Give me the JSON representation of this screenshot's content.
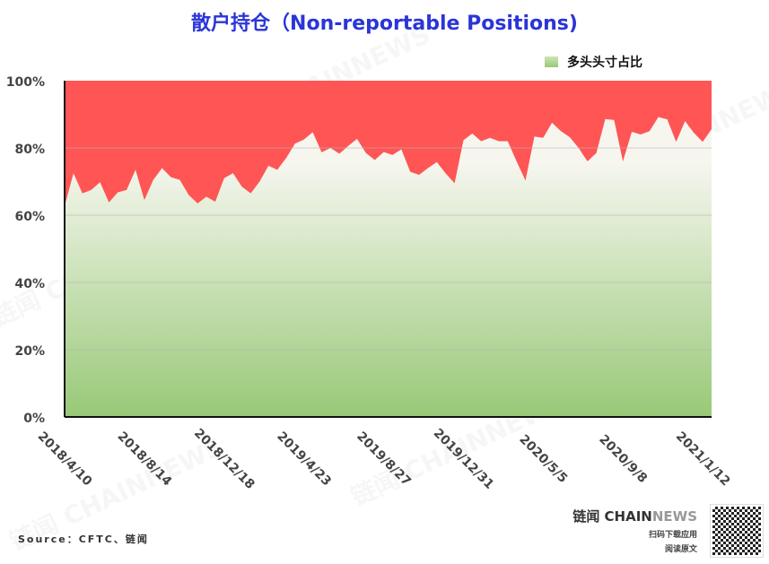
{
  "chart_data": {
    "type": "area",
    "title": "散户持仓（Non-reportable Positions)",
    "legend": {
      "label": "多头头寸占比",
      "placement": "top-right"
    },
    "colors": {
      "long_area_top": "#f6f6ef",
      "long_area_bottom": "#98c977",
      "remainder": "#ff5555",
      "title": "#2a35d8"
    },
    "ylim": [
      0,
      100
    ],
    "yticks": [
      "0%",
      "20%",
      "40%",
      "60%",
      "80%",
      "100%"
    ],
    "xtick_labels": [
      "2018/4/10",
      "2018/8/14",
      "2018/12/18",
      "2019/4/23",
      "2019/8/27",
      "2019/12/31",
      "2020/5/5",
      "2020/9/8",
      "2021/1/12"
    ],
    "grid": "horizontal",
    "stacked_to": 100,
    "x": [
      "2018/4/10",
      "2018/4/24",
      "2018/5/8",
      "2018/5/22",
      "2018/6/5",
      "2018/6/19",
      "2018/7/3",
      "2018/7/17",
      "2018/7/31",
      "2018/8/14",
      "2018/8/28",
      "2018/9/11",
      "2018/9/25",
      "2018/10/9",
      "2018/10/23",
      "2018/11/6",
      "2018/11/20",
      "2018/12/4",
      "2018/12/18",
      "2019/1/1",
      "2019/1/15",
      "2019/1/29",
      "2019/2/12",
      "2019/2/26",
      "2019/3/12",
      "2019/3/26",
      "2019/4/9",
      "2019/4/23",
      "2019/5/7",
      "2019/5/21",
      "2019/6/4",
      "2019/6/18",
      "2019/7/2",
      "2019/7/16",
      "2019/7/30",
      "2019/8/13",
      "2019/8/27",
      "2019/9/10",
      "2019/9/24",
      "2019/10/8",
      "2019/10/22",
      "2019/11/5",
      "2019/11/19",
      "2019/12/3",
      "2019/12/17",
      "2019/12/31",
      "2020/1/14",
      "2020/1/28",
      "2020/2/11",
      "2020/2/25",
      "2020/3/10",
      "2020/3/24",
      "2020/4/7",
      "2020/4/21",
      "2020/5/5",
      "2020/5/19",
      "2020/6/2",
      "2020/6/16",
      "2020/6/30",
      "2020/7/14",
      "2020/7/28",
      "2020/8/11",
      "2020/8/25",
      "2020/9/8",
      "2020/9/22",
      "2020/10/6",
      "2020/10/20",
      "2020/11/3",
      "2020/11/17",
      "2020/12/1",
      "2020/12/15",
      "2020/12/29",
      "2021/1/12",
      "2021/1/26"
    ],
    "series": [
      {
        "name": "多头头寸占比",
        "values": [
          62.7,
          72.5,
          66.5,
          67.5,
          69.8,
          63.8,
          66.8,
          67.5,
          73.5,
          64.5,
          70.5,
          74,
          71.3,
          70.5,
          66,
          63.5,
          65.5,
          64,
          71,
          72.5,
          68.5,
          66.5,
          70,
          74.7,
          73.5,
          77,
          81.3,
          82.5,
          84.7,
          78.7,
          80,
          78.3,
          80.6,
          82.7,
          78.5,
          76.4,
          78.8,
          77.9,
          79.6,
          72.9,
          72,
          74,
          75.8,
          72.4,
          69.5,
          82.3,
          84.3,
          82,
          83,
          82,
          82,
          76,
          70.3,
          83.4,
          83,
          87.5,
          85,
          83.2,
          80,
          76,
          78.5,
          88.6,
          88.3,
          76,
          84.8,
          84,
          85,
          89.2,
          88.5,
          81.8,
          88,
          84.5,
          81.8,
          85.6
        ]
      }
    ]
  },
  "source": "Source：CFTC、链闻",
  "brand": {
    "name_a": "链闻 CHAIN",
    "name_b": "NEWS",
    "line1": "扫码下载应用",
    "line2": "阅读原文"
  },
  "watermark": "链闻 CHAINNEWS"
}
